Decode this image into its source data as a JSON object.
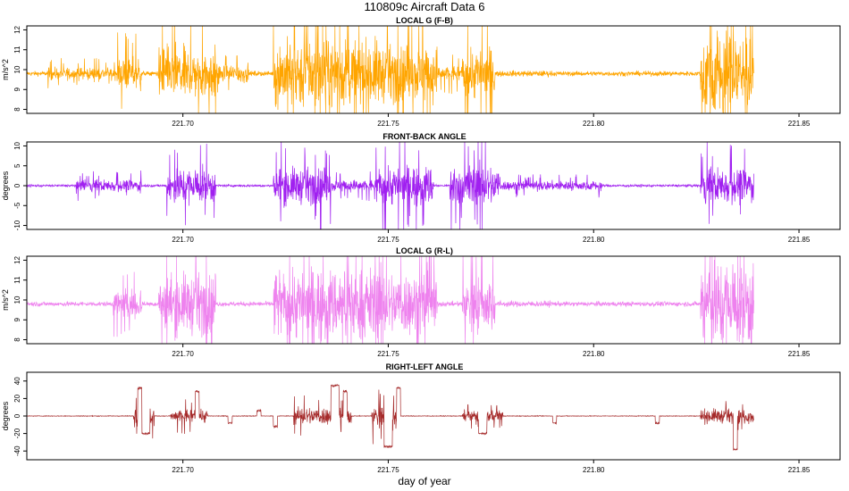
{
  "title": "110809c   Aircraft Data 6",
  "xlabel": "day of year",
  "chart_data": [
    {
      "type": "line",
      "title": "LOCAL G (F-B)",
      "ylabel": "m/s^2",
      "color": "#ffa500",
      "xlim": [
        221.662,
        221.86
      ],
      "ylim": [
        7.8,
        12.2
      ],
      "xticks": [
        "221.70",
        "221.75",
        "221.80",
        "221.85"
      ],
      "xtick_values": [
        221.7,
        221.75,
        221.8,
        221.85
      ],
      "yticks": [
        "8",
        "9",
        "10",
        "11",
        "12"
      ],
      "ytick_values": [
        8,
        9,
        10,
        11,
        12
      ],
      "series": [
        {
          "x_range": [
            221.662,
            221.839
          ],
          "baseline": 9.8,
          "noise": 0.12,
          "bursts": [
            {
              "x": [
                221.667,
                221.684
              ],
              "amp": 0.3
            },
            {
              "x": [
                221.684,
                221.69
              ],
              "amp": 0.8
            },
            {
              "x": [
                221.694,
                221.708
              ],
              "amp": 1.3
            },
            {
              "x": [
                221.708,
                221.716
              ],
              "amp": 0.5
            },
            {
              "x": [
                221.722,
                221.748
              ],
              "amp": 1.7
            },
            {
              "x": [
                221.748,
                221.762
              ],
              "amp": 1.4
            },
            {
              "x": [
                221.762,
                221.768
              ],
              "amp": 0.4
            },
            {
              "x": [
                221.768,
                221.776
              ],
              "amp": 1.3
            },
            {
              "x": [
                221.776,
                221.79
              ],
              "amp": 0.15
            },
            {
              "x": [
                221.826,
                221.839
              ],
              "amp": 2.3
            }
          ]
        }
      ]
    },
    {
      "type": "line",
      "title": "FRONT-BACK ANGLE",
      "ylabel": "degrees",
      "color": "#a020f0",
      "xlim": [
        221.662,
        221.86
      ],
      "ylim": [
        -11,
        11
      ],
      "xticks": [
        "221.70",
        "221.75",
        "221.80",
        "221.85"
      ],
      "xtick_values": [
        221.7,
        221.75,
        221.8,
        221.85
      ],
      "yticks": [
        "-10",
        "-5",
        "0",
        "5",
        "10"
      ],
      "ytick_values": [
        -10,
        -5,
        0,
        5,
        10
      ],
      "series": [
        {
          "x_range": [
            221.662,
            221.839
          ],
          "baseline": 0.0,
          "noise": 0.3,
          "bursts": [
            {
              "x": [
                221.674,
                221.69
              ],
              "amp": 1.5
            },
            {
              "x": [
                221.696,
                221.708
              ],
              "amp": 4.5
            },
            {
              "x": [
                221.722,
                221.736
              ],
              "amp": 4.5
            },
            {
              "x": [
                221.736,
                221.747
              ],
              "amp": 1.5
            },
            {
              "x": [
                221.747,
                221.761
              ],
              "amp": 5.0
            },
            {
              "x": [
                221.765,
                221.777
              ],
              "amp": 5.0
            },
            {
              "x": [
                221.777,
                221.802
              ],
              "amp": 1.2
            },
            {
              "x": [
                221.826,
                221.839
              ],
              "amp": 4.5
            }
          ]
        }
      ]
    },
    {
      "type": "line",
      "title": "LOCAL G (R-L)",
      "ylabel": "m/s^2",
      "color": "#ee82ee",
      "xlim": [
        221.662,
        221.86
      ],
      "ylim": [
        7.8,
        12.2
      ],
      "xticks": [
        "221.70",
        "221.75",
        "221.80",
        "221.85"
      ],
      "xtick_values": [
        221.7,
        221.75,
        221.8,
        221.85
      ],
      "yticks": [
        "8",
        "9",
        "10",
        "11",
        "12"
      ],
      "ytick_values": [
        8,
        9,
        10,
        11,
        12
      ],
      "series": [
        {
          "x_range": [
            221.662,
            221.839
          ],
          "baseline": 9.8,
          "noise": 0.12,
          "bursts": [
            {
              "x": [
                221.683,
                221.69
              ],
              "amp": 0.8
            },
            {
              "x": [
                221.694,
                221.708
              ],
              "amp": 1.5
            },
            {
              "x": [
                221.722,
                221.748
              ],
              "amp": 1.8
            },
            {
              "x": [
                221.748,
                221.762
              ],
              "amp": 1.6
            },
            {
              "x": [
                221.768,
                221.776
              ],
              "amp": 1.4
            },
            {
              "x": [
                221.776,
                221.79
              ],
              "amp": 0.15
            },
            {
              "x": [
                221.826,
                221.839
              ],
              "amp": 2.3
            }
          ]
        }
      ]
    },
    {
      "type": "line",
      "title": "RIGHT-LEFT ANGLE",
      "ylabel": "degrees",
      "color": "#a52a2a",
      "xlim": [
        221.662,
        221.86
      ],
      "ylim": [
        -50,
        50
      ],
      "xticks": [
        "221.70",
        "221.75",
        "221.80",
        "221.85"
      ],
      "xtick_values": [
        221.7,
        221.75,
        221.8,
        221.85
      ],
      "yticks": [
        "-40",
        "-20",
        "0",
        "20",
        "40"
      ],
      "ytick_values": [
        -40,
        -20,
        0,
        20,
        40
      ],
      "series": [
        {
          "x_range": [
            221.662,
            221.839
          ],
          "baseline": 0.0,
          "noise": 0.4,
          "bursts": [
            {
              "x": [
                221.688,
                221.693
              ],
              "amp": 12
            },
            {
              "x": [
                221.697,
                221.706
              ],
              "amp": 8
            },
            {
              "x": [
                221.727,
                221.741
              ],
              "amp": 10
            },
            {
              "x": [
                221.746,
                221.753
              ],
              "amp": 14
            },
            {
              "x": [
                221.768,
                221.778
              ],
              "amp": 6
            },
            {
              "x": [
                221.826,
                221.839
              ],
              "amp": 8
            }
          ],
          "steps": [
            {
              "x": [
                221.689,
                221.69
              ],
              "value": 32
            },
            {
              "x": [
                221.69,
                221.692
              ],
              "value": -20
            },
            {
              "x": [
                221.703,
                221.704
              ],
              "value": 28
            },
            {
              "x": [
                221.711,
                221.712
              ],
              "value": -8
            },
            {
              "x": [
                221.718,
                221.719
              ],
              "value": 6
            },
            {
              "x": [
                221.722,
                221.723
              ],
              "value": -12
            },
            {
              "x": [
                221.736,
                221.738
              ],
              "value": 35
            },
            {
              "x": [
                221.739,
                221.74
              ],
              "value": 28
            },
            {
              "x": [
                221.749,
                221.751
              ],
              "value": -35
            },
            {
              "x": [
                221.752,
                221.753
              ],
              "value": 32
            },
            {
              "x": [
                221.772,
                221.774
              ],
              "value": -20
            },
            {
              "x": [
                221.79,
                221.791
              ],
              "value": -8
            },
            {
              "x": [
                221.815,
                221.816
              ],
              "value": -8
            },
            {
              "x": [
                221.834,
                221.835
              ],
              "value": -38
            }
          ]
        }
      ]
    }
  ]
}
